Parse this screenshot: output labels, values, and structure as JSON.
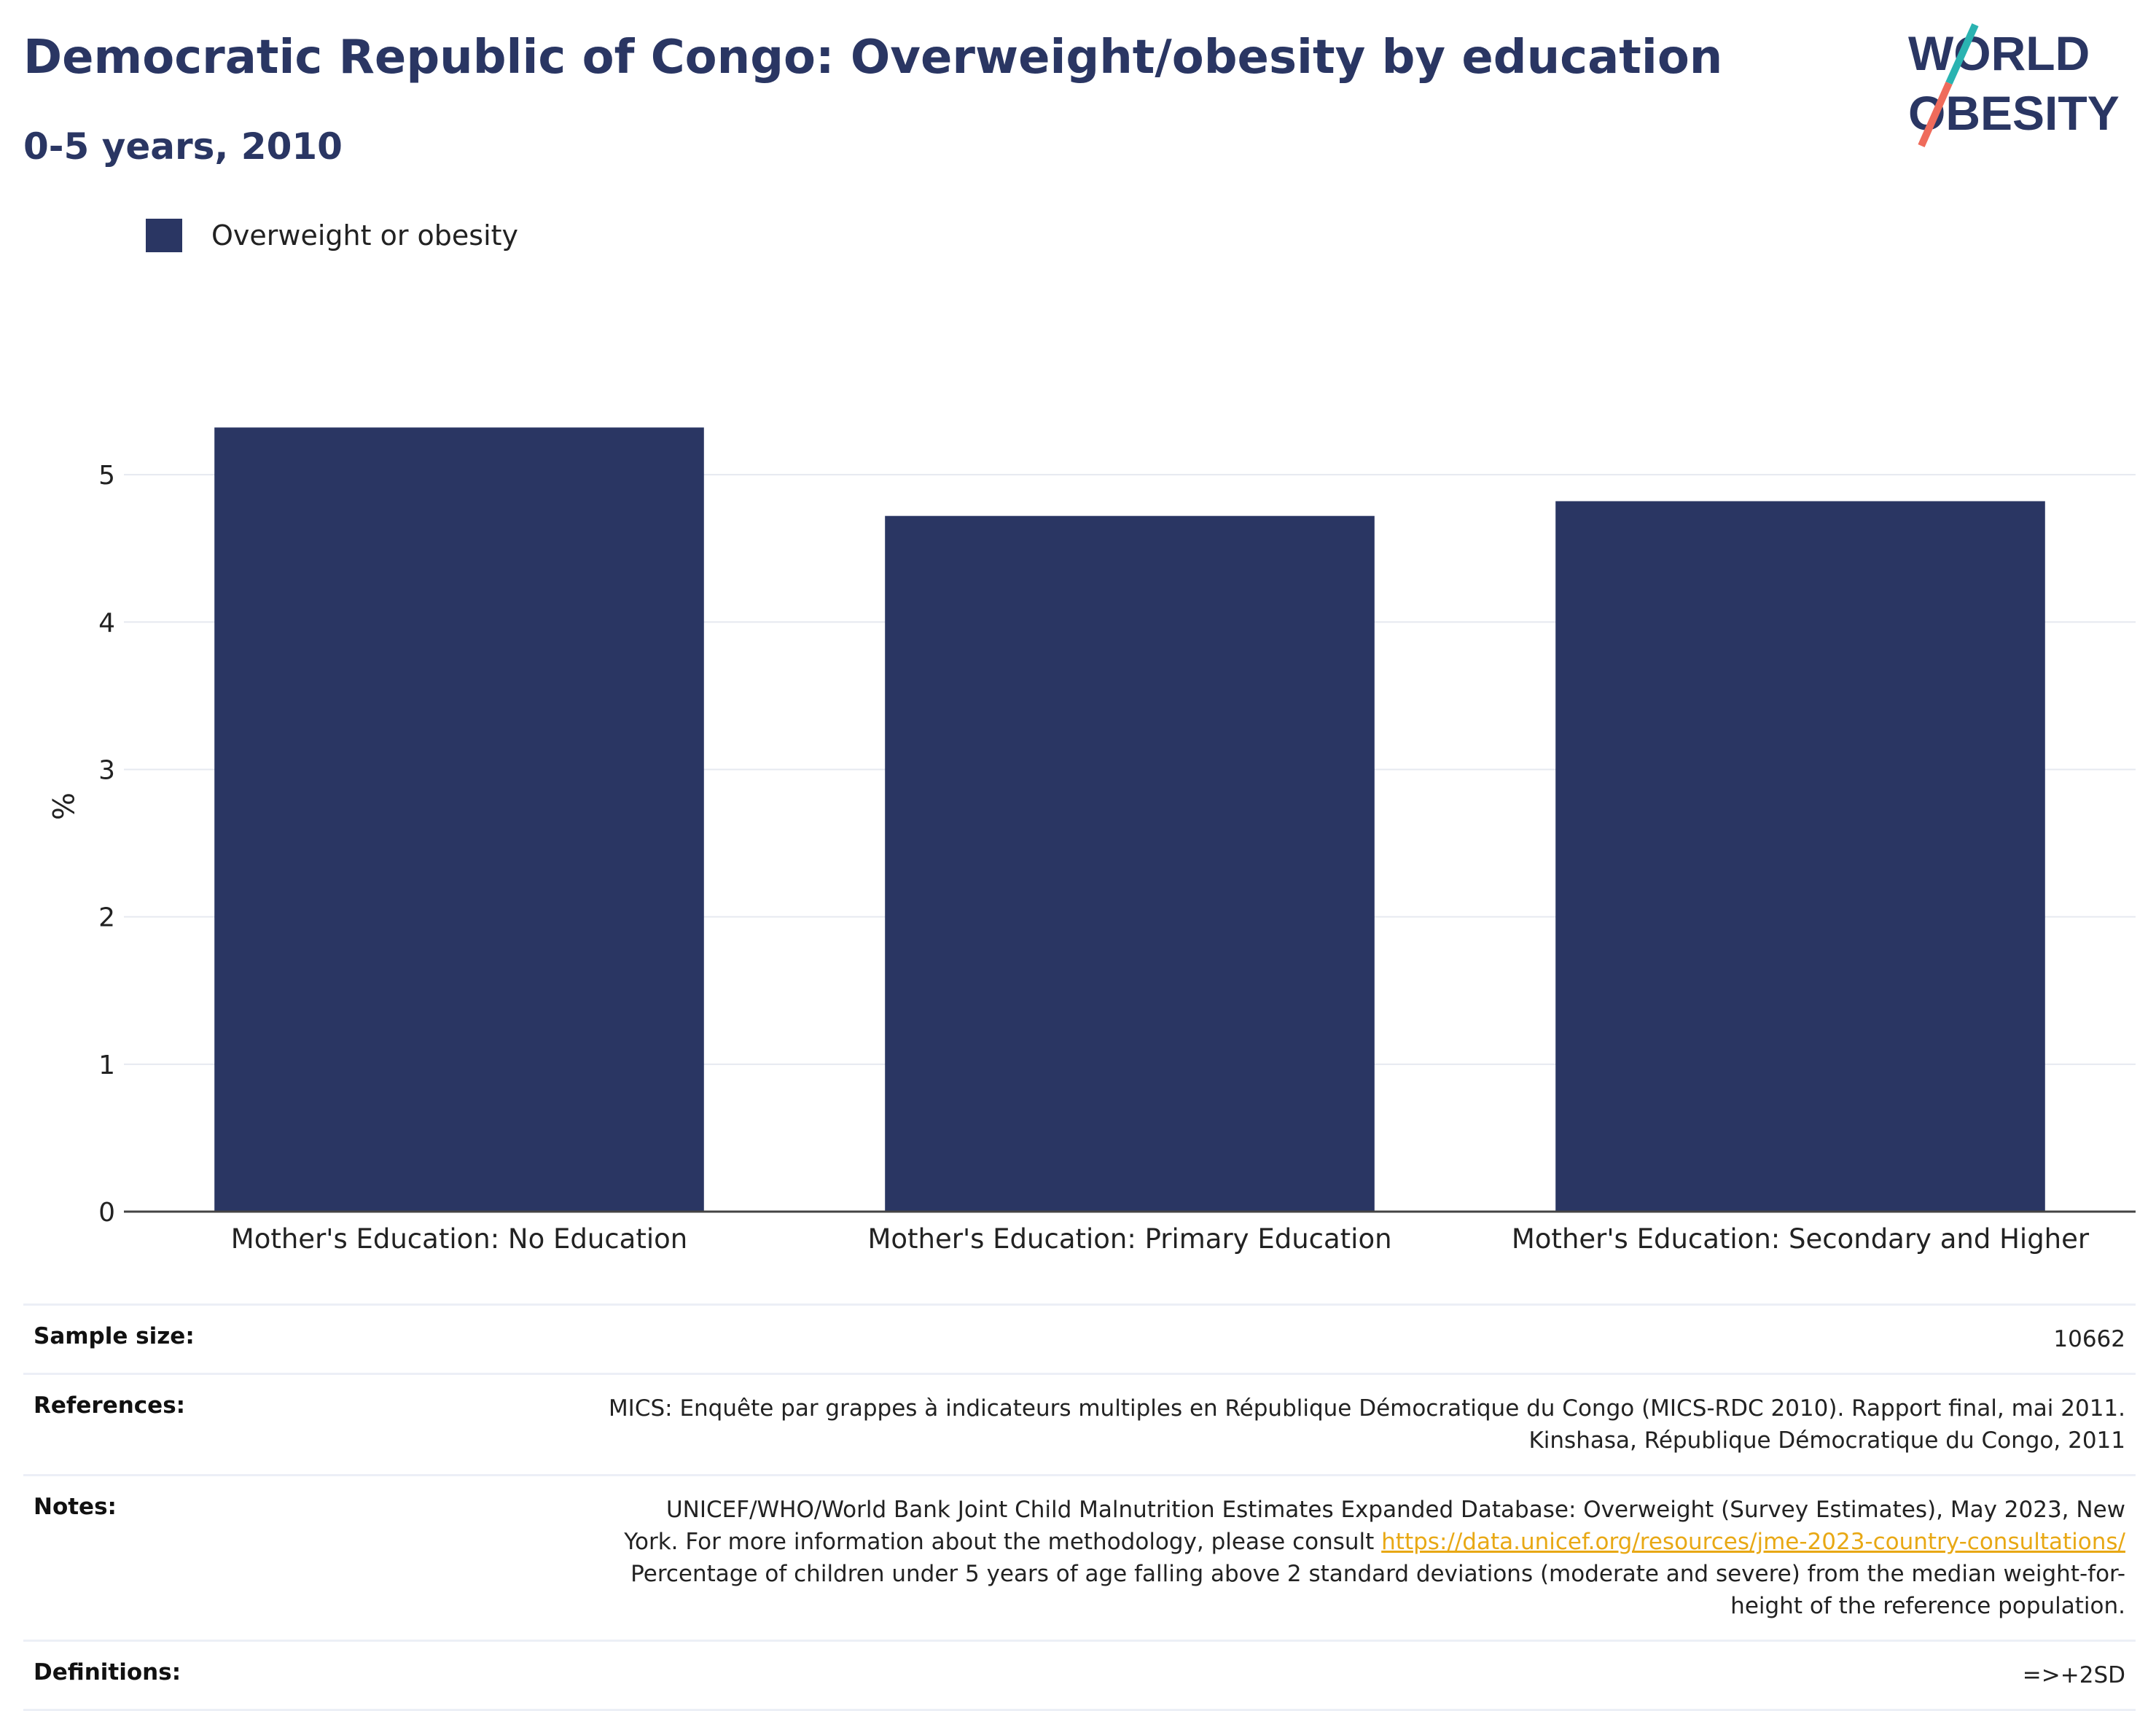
{
  "header": {
    "title": "Democratic Republic of Congo: Overweight/obesity by education",
    "subtitle": "0-5 years, 2010"
  },
  "logo": {
    "line1": "WORLD",
    "line2": "OBESITY"
  },
  "colors": {
    "bar": "#2a3663",
    "title": "#2a3663",
    "link": "#e8a814",
    "logo_teal": "#2ab3b1",
    "logo_coral": "#ef6b5b"
  },
  "chart_data": {
    "type": "bar",
    "categories": [
      "Mother's Education: No Education",
      "Mother's Education: Primary Education",
      "Mother's Education: Secondary and Higher"
    ],
    "series": [
      {
        "name": "Overweight or obesity",
        "values": [
          5.32,
          4.72,
          4.82
        ]
      }
    ],
    "ylabel": "%",
    "ylim": [
      0,
      5.5
    ],
    "yticks": [
      0,
      1,
      2,
      3,
      4,
      5
    ],
    "grid": true,
    "legend": "top-left"
  },
  "table": {
    "sample_size": {
      "label": "Sample size:",
      "value": "10662"
    },
    "references": {
      "label": "References:",
      "line1": "MICS: Enquête par grappes à indicateurs multiples en République Démocratique du Congo (MICS-RDC 2010). Rapport final, mai 2011.",
      "line2": "Kinshasa, République Démocratique du Congo, 2011"
    },
    "notes": {
      "label": "Notes:",
      "line1": "UNICEF/WHO/World Bank Joint Child Malnutrition Estimates Expanded Database: Overweight (Survey Estimates), May 2023, New",
      "line2_prefix": "York. For more information about the methodology, please consult ",
      "link": "https://data.unicef.org/resources/jme-2023-country-consultations/",
      "line3": "Percentage of children under 5 years of age falling above 2 standard deviations (moderate and severe) from the median weight-for-",
      "line4": "height of the reference population."
    },
    "definitions": {
      "label": "Definitions:",
      "value": "=>+2SD"
    }
  }
}
